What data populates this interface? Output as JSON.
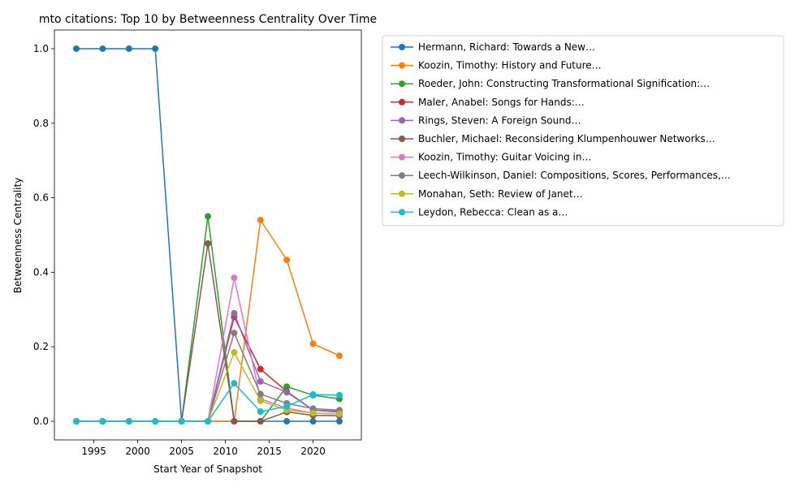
{
  "chart_data": {
    "type": "line",
    "title": "mto citations: Top 10 by Betweenness Centrality Over Time",
    "xlabel": "Start Year of Snapshot",
    "ylabel": "Betweenness Centrality",
    "xlim": [
      1990.5,
      2025.5
    ],
    "ylim": [
      -0.05,
      1.05
    ],
    "xticks": [
      1995,
      2000,
      2005,
      2010,
      2015,
      2020
    ],
    "yticks": [
      0.0,
      0.2,
      0.4,
      0.6,
      0.8,
      1.0
    ],
    "grid": false,
    "legend_position": "outside-right-top",
    "x": [
      1993,
      1996,
      1999,
      2002,
      2005,
      2008,
      2011,
      2014,
      2017,
      2020,
      2023
    ],
    "series": [
      {
        "name": "Hermann, Richard: Towards a New…",
        "color": "#1f77b4",
        "values": [
          1.0,
          1.0,
          1.0,
          1.0,
          0.0,
          0.0,
          0.0,
          0.0,
          0.0,
          0.0,
          0.0
        ]
      },
      {
        "name": "Koozin, Timothy: History and Future…",
        "color": "#ff7f0e",
        "values": [
          0.0,
          0.0,
          0.0,
          0.0,
          0.0,
          0.0,
          0.0,
          0.54,
          0.433,
          0.208,
          0.176
        ]
      },
      {
        "name": "Roeder, John: Constructing Transformational Signification:…",
        "color": "#2ca02c",
        "values": [
          0.0,
          0.0,
          0.0,
          0.0,
          0.0,
          0.55,
          0.0,
          0.0,
          0.093,
          0.07,
          0.06
        ]
      },
      {
        "name": "Maler, Anabel: Songs for Hands:…",
        "color": "#d62728",
        "values": [
          0.0,
          0.0,
          0.0,
          0.0,
          0.0,
          0.0,
          0.28,
          0.14,
          0.08,
          0.03,
          0.025
        ]
      },
      {
        "name": "Rings, Steven: A Foreign Sound…",
        "color": "#9467bd",
        "values": [
          0.0,
          0.0,
          0.0,
          0.0,
          0.0,
          0.0,
          0.29,
          0.107,
          0.078,
          0.03,
          0.027
        ]
      },
      {
        "name": "Buchler, Michael: Reconsidering Klumpenhouwer Networks…",
        "color": "#8c564b",
        "values": [
          0.0,
          0.0,
          0.0,
          0.0,
          0.0,
          0.477,
          0.0,
          0.0,
          0.025,
          0.016,
          0.015
        ]
      },
      {
        "name": "Koozin, Timothy: Guitar Voicing in…",
        "color": "#e377c2",
        "values": [
          0.0,
          0.0,
          0.0,
          0.0,
          0.0,
          0.0,
          0.385,
          0.06,
          0.035,
          0.022,
          0.02
        ]
      },
      {
        "name": "Leech-Wilkinson, Daniel: Compositions, Scores, Performances,…",
        "color": "#7f7f7f",
        "values": [
          0.0,
          0.0,
          0.0,
          0.0,
          0.0,
          0.0,
          0.237,
          0.073,
          0.048,
          0.034,
          0.03
        ]
      },
      {
        "name": "Monahan, Seth: Review of Janet…",
        "color": "#bcbd22",
        "values": [
          0.0,
          0.0,
          0.0,
          0.0,
          0.0,
          0.0,
          0.185,
          0.055,
          0.03,
          0.022,
          0.02
        ]
      },
      {
        "name": "Leydon, Rebecca: Clean as a…",
        "color": "#17becf",
        "values": [
          0.0,
          0.0,
          0.0,
          0.0,
          0.0,
          0.0,
          0.102,
          0.026,
          0.04,
          0.072,
          0.07
        ]
      }
    ]
  }
}
